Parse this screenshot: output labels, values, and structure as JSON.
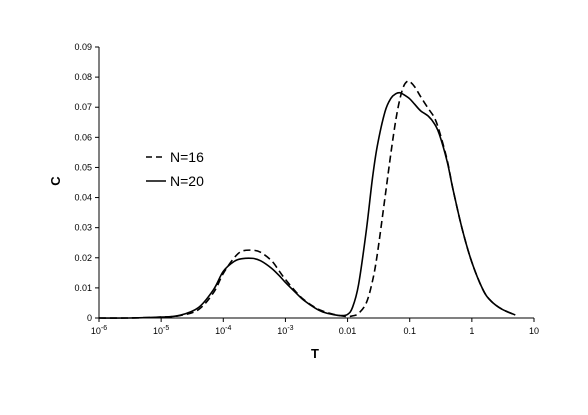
{
  "chart_data": {
    "type": "line",
    "title": "",
    "xlabel": "T",
    "ylabel": "C",
    "xscale": "log",
    "xlim": [
      1e-06,
      10
    ],
    "ylim": [
      0,
      0.09
    ],
    "grid": false,
    "legend_position": "left",
    "x_ticks": [
      {
        "value": 1e-06,
        "label": "10",
        "exp": "-6"
      },
      {
        "value": 1e-05,
        "label": "10",
        "exp": "-5"
      },
      {
        "value": 0.0001,
        "label": "10",
        "exp": "-4"
      },
      {
        "value": 0.001,
        "label": "10",
        "exp": "-3"
      },
      {
        "value": 0.01,
        "label": "0.01",
        "exp": ""
      },
      {
        "value": 0.1,
        "label": "0.1",
        "exp": ""
      },
      {
        "value": 1,
        "label": "1",
        "exp": ""
      },
      {
        "value": 10,
        "label": "10",
        "exp": ""
      }
    ],
    "y_ticks": [
      {
        "value": 0,
        "label": "0"
      },
      {
        "value": 0.01,
        "label": "0.01"
      },
      {
        "value": 0.02,
        "label": "0.02"
      },
      {
        "value": 0.03,
        "label": "0.03"
      },
      {
        "value": 0.04,
        "label": "0.04"
      },
      {
        "value": 0.05,
        "label": "0.05"
      },
      {
        "value": 0.06,
        "label": "0.06"
      },
      {
        "value": 0.07,
        "label": "0.07"
      },
      {
        "value": 0.08,
        "label": "0.08"
      },
      {
        "value": 0.09,
        "label": "0.09"
      }
    ],
    "series": [
      {
        "name": "N=16",
        "style": "dashed",
        "color": "#000000",
        "x": [
          1e-06,
          3e-06,
          1e-05,
          2e-05,
          4e-05,
          7e-05,
          0.0001,
          0.00015,
          0.0002,
          0.0003,
          0.0004,
          0.0006,
          0.0008,
          0.001,
          0.0015,
          0.002,
          0.003,
          0.004,
          0.006,
          0.008,
          0.01,
          0.012,
          0.015,
          0.02,
          0.025,
          0.03,
          0.04,
          0.05,
          0.06,
          0.07,
          0.08,
          0.09,
          0.1,
          0.12,
          0.15,
          0.2,
          0.25,
          0.3,
          0.4,
          0.5,
          0.7,
          1,
          1.5,
          2,
          3,
          5
        ],
        "y": [
          0,
          0,
          0.0003,
          0.0008,
          0.0028,
          0.0085,
          0.0148,
          0.02,
          0.0222,
          0.0225,
          0.0218,
          0.019,
          0.0155,
          0.0128,
          0.0085,
          0.006,
          0.0035,
          0.0023,
          0.0012,
          0.0007,
          0.0005,
          0.0007,
          0.0015,
          0.005,
          0.012,
          0.021,
          0.04,
          0.055,
          0.066,
          0.073,
          0.077,
          0.0785,
          0.0785,
          0.0768,
          0.0735,
          0.0695,
          0.0665,
          0.062,
          0.0525,
          0.0425,
          0.0295,
          0.0185,
          0.0095,
          0.0058,
          0.003,
          0.001
        ]
      },
      {
        "name": "N=20",
        "style": "solid",
        "color": "#000000",
        "x": [
          1e-06,
          3e-06,
          1e-05,
          2e-05,
          4e-05,
          7e-05,
          0.0001,
          0.00015,
          0.0002,
          0.0003,
          0.0004,
          0.0006,
          0.0008,
          0.001,
          0.0015,
          0.002,
          0.003,
          0.004,
          0.006,
          0.008,
          0.01,
          0.012,
          0.015,
          0.02,
          0.025,
          0.03,
          0.04,
          0.05,
          0.06,
          0.07,
          0.08,
          0.1,
          0.12,
          0.15,
          0.2,
          0.25,
          0.3,
          0.4,
          0.5,
          0.7,
          1,
          1.5,
          2,
          3,
          5
        ],
        "y": [
          0,
          0,
          0.0003,
          0.0009,
          0.0035,
          0.0095,
          0.0155,
          0.0188,
          0.0197,
          0.0198,
          0.019,
          0.0165,
          0.014,
          0.0118,
          0.0082,
          0.0058,
          0.0033,
          0.002,
          0.0011,
          0.0008,
          0.0012,
          0.0035,
          0.011,
          0.029,
          0.046,
          0.057,
          0.0685,
          0.073,
          0.0745,
          0.0748,
          0.0742,
          0.0728,
          0.071,
          0.0688,
          0.067,
          0.0645,
          0.061,
          0.052,
          0.0425,
          0.0295,
          0.0185,
          0.0095,
          0.0058,
          0.003,
          0.001
        ]
      }
    ]
  }
}
